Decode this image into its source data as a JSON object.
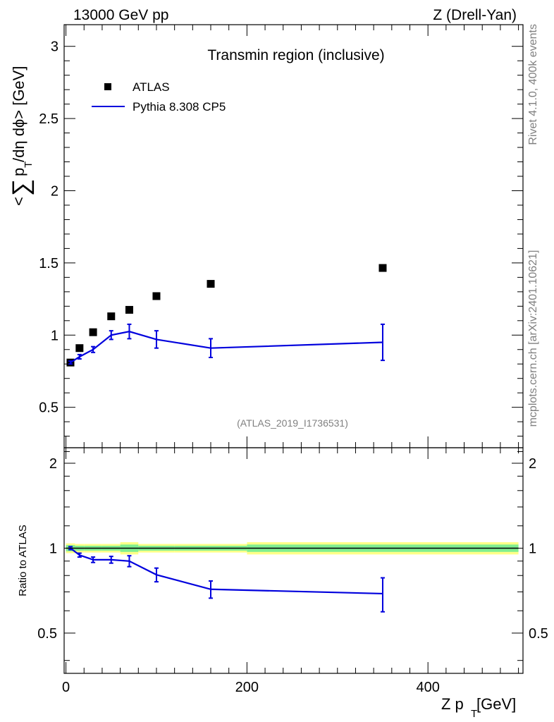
{
  "header": {
    "left": "13000 GeV pp",
    "right": "Z (Drell-Yan)"
  },
  "side_text": {
    "rivet": "Rivet 4.1.0,  400k events",
    "arxiv": "mcplots.cern.ch [arXiv:2401.10621]"
  },
  "chart_data": [
    {
      "id": "main",
      "type": "scatter",
      "title": "Transmin region (inclusive)",
      "analysis_label": "(ATLAS_2019_I1736531)",
      "ylabel": "< ∑ pT /dη dϕ> [GeV]",
      "ylabel_parts": {
        "lt": "<",
        "sum": "∑",
        "p": "p",
        "sub": "T",
        "rest": " /dη dϕ> [GeV]"
      },
      "xlim": [
        -2,
        505
      ],
      "ylim": [
        0.22,
        3.15
      ],
      "yticks": [
        0.5,
        1,
        1.5,
        2,
        2.5,
        3
      ],
      "ytick_labels": [
        "0.5",
        "1",
        "1.5",
        "2",
        "2.5",
        "3"
      ],
      "legend": {
        "placement": "top-left",
        "entries": [
          "ATLAS",
          "Pythia 8.308 CP5"
        ]
      },
      "series": [
        {
          "name": "ATLAS",
          "style": "square-markers",
          "color": "#000000",
          "points": [
            {
              "x": 5,
              "y": 0.81
            },
            {
              "x": 15,
              "y": 0.91
            },
            {
              "x": 30,
              "y": 1.02
            },
            {
              "x": 50,
              "y": 1.13
            },
            {
              "x": 70,
              "y": 1.175
            },
            {
              "x": 100,
              "y": 1.27
            },
            {
              "x": 160,
              "y": 1.355
            },
            {
              "x": 350,
              "y": 1.465
            }
          ]
        },
        {
          "name": "Pythia 8.308 CP5",
          "style": "line-with-errors",
          "color": "#0000dd",
          "points": [
            {
              "x": 5,
              "y": 0.81,
              "err": 0.01
            },
            {
              "x": 15,
              "y": 0.85,
              "err": 0.015
            },
            {
              "x": 30,
              "y": 0.9,
              "err": 0.02
            },
            {
              "x": 50,
              "y": 1.0,
              "err": 0.03
            },
            {
              "x": 70,
              "y": 1.025,
              "err": 0.05
            },
            {
              "x": 100,
              "y": 0.97,
              "err": 0.06
            },
            {
              "x": 160,
              "y": 0.91,
              "err": 0.065
            },
            {
              "x": 350,
              "y": 0.95,
              "err": 0.125
            }
          ]
        }
      ]
    },
    {
      "id": "ratio",
      "type": "line",
      "ylabel": "Ratio to ATLAS",
      "xlabel": "Z pT [GeV]",
      "xlabel_parts": {
        "main": "Z p",
        "sub": "T",
        "rest": " [GeV]"
      },
      "xlim": [
        -2,
        505
      ],
      "ylim": [
        0.36,
        2.27
      ],
      "xticks": [
        0,
        200,
        400
      ],
      "xtick_labels": [
        "0",
        "200",
        "400"
      ],
      "yticks": [
        0.5,
        1,
        2
      ],
      "ytick_labels": [
        "0.5",
        "1",
        "2"
      ],
      "bands": {
        "inner_color": "#80ee90",
        "outer_color": "#ffff88",
        "bins": [
          {
            "x0": 0,
            "x1": 10,
            "inner": 0.025,
            "outer": 0.04
          },
          {
            "x0": 10,
            "x1": 20,
            "inner": 0.02,
            "outer": 0.035
          },
          {
            "x0": 20,
            "x1": 40,
            "inner": 0.02,
            "outer": 0.035
          },
          {
            "x0": 40,
            "x1": 60,
            "inner": 0.02,
            "outer": 0.035
          },
          {
            "x0": 60,
            "x1": 80,
            "inner": 0.03,
            "outer": 0.05
          },
          {
            "x0": 80,
            "x1": 120,
            "inner": 0.02,
            "outer": 0.035
          },
          {
            "x0": 120,
            "x1": 200,
            "inner": 0.02,
            "outer": 0.035
          },
          {
            "x0": 200,
            "x1": 500,
            "inner": 0.03,
            "outer": 0.05
          }
        ]
      },
      "series": [
        {
          "name": "Pythia 8.308 CP5 / ATLAS",
          "color": "#0000dd",
          "points": [
            {
              "x": 5,
              "y": 1.0,
              "err": 0.012
            },
            {
              "x": 15,
              "y": 0.945,
              "err": 0.015
            },
            {
              "x": 30,
              "y": 0.91,
              "err": 0.02
            },
            {
              "x": 50,
              "y": 0.91,
              "err": 0.025
            },
            {
              "x": 70,
              "y": 0.9,
              "err": 0.04
            },
            {
              "x": 100,
              "y": 0.805,
              "err": 0.045
            },
            {
              "x": 160,
              "y": 0.715,
              "err": 0.05
            },
            {
              "x": 350,
              "y": 0.69,
              "err": 0.095
            }
          ]
        }
      ]
    }
  ]
}
